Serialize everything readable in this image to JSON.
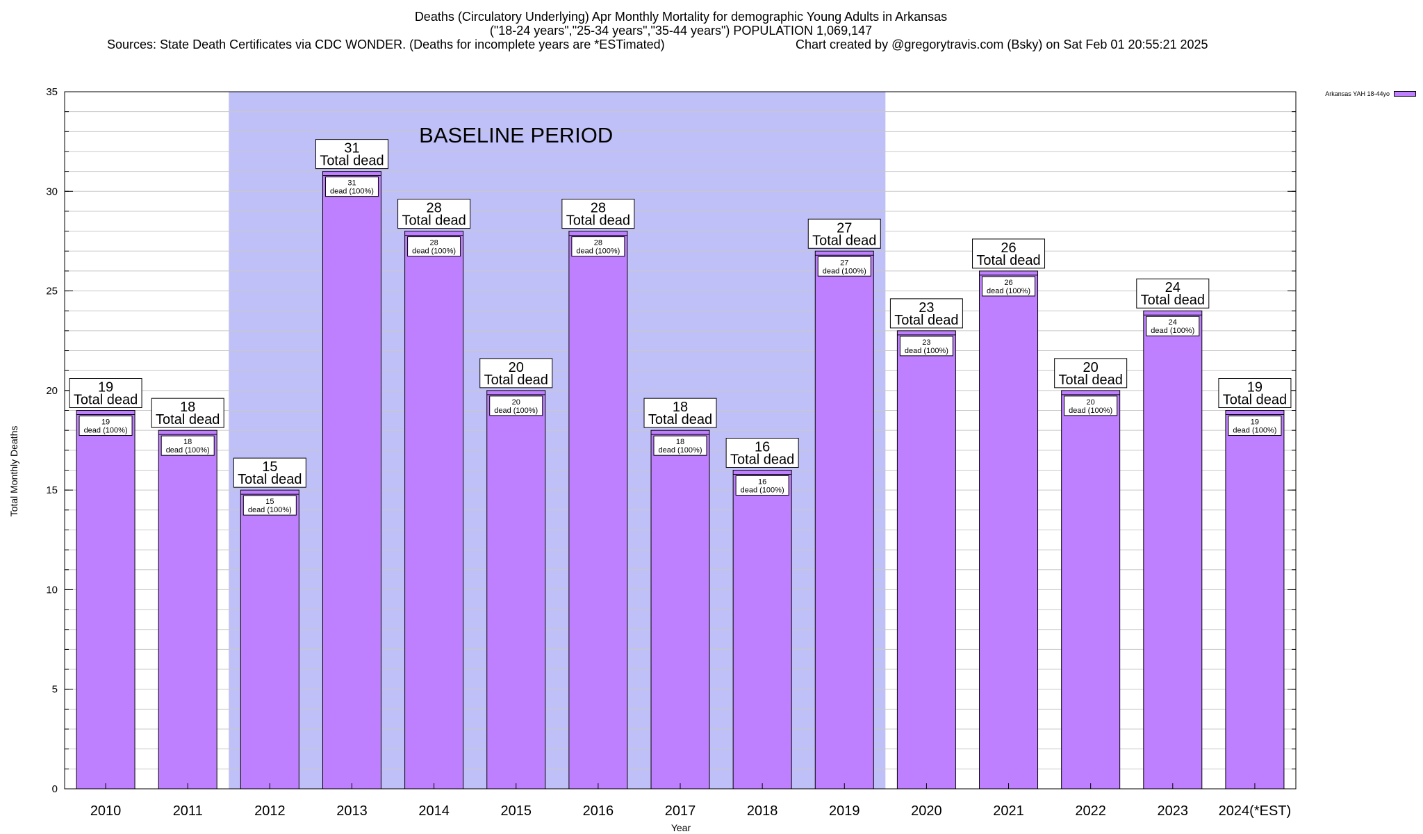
{
  "header": {
    "title_line1": "Deaths (Circulatory Underlying) Apr Monthly Mortality for demographic Young Adults in Arkansas",
    "title_line2": "(\"18-24 years\",\"25-34 years\",\"35-44 years\") POPULATION 1,069,147",
    "sources": "Sources: State Death Certificates via CDC WONDER. (Deaths for incomplete years are *ESTimated)",
    "credit": "Chart created by @gregorytravis.com (Bsky) on Sat Feb 01 20:55:21 2025"
  },
  "colors": {
    "bar_fill": "#bf80ff",
    "baseline_band": "#c0c0f8",
    "grid": "#c8c8c8",
    "axis": "#000000"
  },
  "chart_data": {
    "type": "bar",
    "title": "Deaths (Circulatory Underlying) Apr Monthly Mortality for demographic Young Adults in Arkansas",
    "xlabel": "Year",
    "ylabel": "Total Monthly Deaths",
    "ylim": [
      0,
      35
    ],
    "yticks": [
      0,
      5,
      10,
      15,
      20,
      25,
      30,
      35
    ],
    "grid": true,
    "legend_position": "top-right",
    "categories": [
      "2010",
      "2011",
      "2012",
      "2013",
      "2014",
      "2015",
      "2016",
      "2017",
      "2018",
      "2019",
      "2020",
      "2021",
      "2022",
      "2023",
      "2024(*EST)"
    ],
    "series": [
      {
        "name": "Arkansas YAH 18-44yo",
        "values": [
          19,
          18,
          15,
          31,
          28,
          20,
          28,
          18,
          16,
          27,
          23,
          26,
          20,
          24,
          19
        ]
      }
    ],
    "bar_total_label": "Total dead",
    "bar_inner_label": "dead (100%)",
    "baseline_period": {
      "label": "BASELINE PERIOD",
      "start": "2012",
      "end": "2019"
    }
  }
}
